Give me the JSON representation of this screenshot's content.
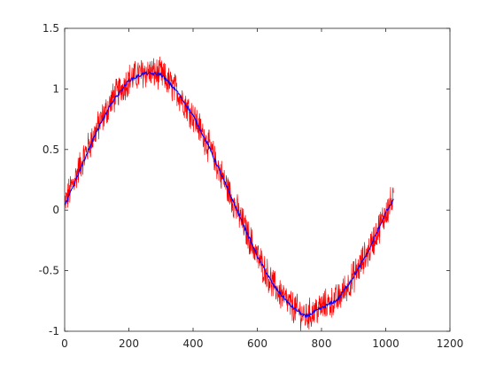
{
  "chart_data": {
    "type": "line",
    "title": "",
    "xlabel": "",
    "ylabel": "",
    "xlim": [
      0,
      1200
    ],
    "ylim": [
      -1,
      1.5
    ],
    "x_ticks": [
      0,
      200,
      400,
      600,
      800,
      1000,
      1200
    ],
    "x_tick_labels": [
      "0",
      "200",
      "400",
      "600",
      "800",
      "1000",
      "1200"
    ],
    "y_ticks": [
      -1,
      -0.5,
      0,
      0.5,
      1,
      1.5
    ],
    "y_tick_labels": [
      "-1",
      "-0.5",
      "0",
      "0.5",
      "1",
      "1.5"
    ],
    "grid": false,
    "legend": "none",
    "series": [
      {
        "color": "#ff0000",
        "style": "noisy",
        "x": [
          0,
          50,
          100,
          150,
          200,
          250,
          300,
          350,
          400,
          450,
          500,
          550,
          600,
          650,
          700,
          750,
          800,
          850,
          900,
          950,
          1000,
          1024
        ],
        "values": [
          0.05,
          0.38,
          0.67,
          0.92,
          1.08,
          1.14,
          1.12,
          0.98,
          0.78,
          0.52,
          0.22,
          -0.08,
          -0.38,
          -0.62,
          -0.78,
          -0.88,
          -0.8,
          -0.74,
          -0.55,
          -0.32,
          -0.02,
          0.1
        ]
      },
      {
        "color": "#0000ff",
        "style": "smooth",
        "x": [
          0,
          50,
          100,
          150,
          200,
          250,
          300,
          350,
          400,
          450,
          500,
          550,
          600,
          650,
          700,
          750,
          800,
          850,
          900,
          950,
          1000,
          1024
        ],
        "values": [
          0.03,
          0.35,
          0.65,
          0.9,
          1.07,
          1.13,
          1.12,
          0.98,
          0.78,
          0.52,
          0.22,
          -0.08,
          -0.38,
          -0.62,
          -0.78,
          -0.88,
          -0.81,
          -0.74,
          -0.55,
          -0.32,
          -0.02,
          0.08
        ]
      }
    ]
  }
}
